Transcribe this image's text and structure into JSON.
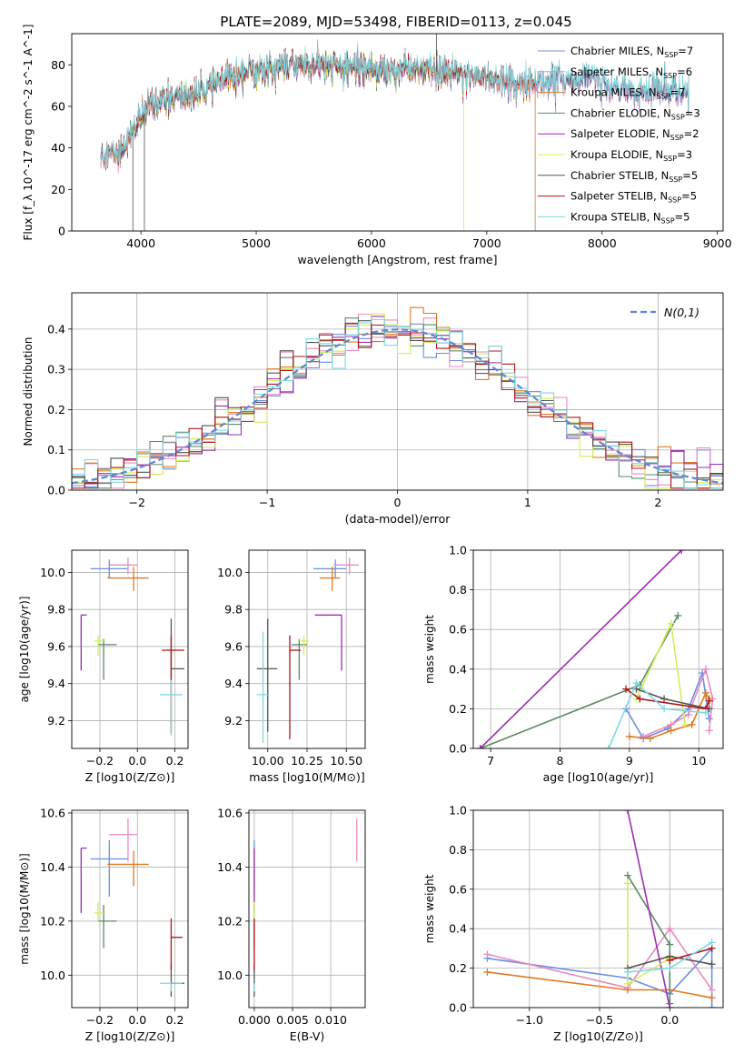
{
  "figure_title": "PLATE=2089, MJD=53498, FIBERID=0113, z=0.045",
  "colors": {
    "chabrier_miles": "#6b8fe0",
    "salpeter_miles": "#e98ac0",
    "kroupa_miles": "#e07a22",
    "chabrier_elodie": "#5b8a66",
    "salpeter_elodie": "#9b2fae",
    "kroupa_elodie": "#d2ef5a",
    "chabrier_stelib": "#555555",
    "salpeter_stelib": "#b01515",
    "kroupa_stelib": "#7fd8e0"
  },
  "chart_data": [
    {
      "id": "spectrum",
      "type": "line",
      "xlabel": "wavelength [Angstrom, rest frame]",
      "ylabel": "Flux [f_λ 10^-17 erg cm^-2 s^-1 A^-1]",
      "xlim": [
        3400,
        9050
      ],
      "ylim": [
        0,
        95
      ],
      "xticks": [
        4000,
        5000,
        6000,
        7000,
        8000,
        9000
      ],
      "yticks": [
        0,
        20,
        40,
        60,
        80
      ],
      "grid": false,
      "legend_placement": "top-right",
      "continuum": [
        [
          3650,
          38
        ],
        [
          3800,
          37
        ],
        [
          3950,
          50
        ],
        [
          4100,
          62
        ],
        [
          4300,
          64
        ],
        [
          4500,
          66
        ],
        [
          4700,
          72
        ],
        [
          4900,
          77
        ],
        [
          5100,
          78
        ],
        [
          5300,
          80
        ],
        [
          5500,
          80
        ],
        [
          5700,
          79
        ],
        [
          5900,
          79
        ],
        [
          6100,
          78
        ],
        [
          6300,
          78
        ],
        [
          6500,
          77
        ],
        [
          6700,
          76
        ],
        [
          6900,
          75
        ],
        [
          7100,
          73
        ],
        [
          7300,
          71
        ],
        [
          7500,
          72
        ],
        [
          7700,
          73
        ],
        [
          7900,
          74
        ],
        [
          8100,
          69
        ],
        [
          8300,
          67
        ],
        [
          8500,
          69
        ],
        [
          8700,
          67
        ]
      ],
      "series": [
        {
          "name": "Chabrier MILES, N_SSP=7",
          "color_key": "chabrier_miles",
          "x_start": 3650,
          "x_end": 8750
        },
        {
          "name": "Salpeter MILES, N_SSP=6",
          "color_key": "salpeter_miles",
          "x_start": 3650,
          "x_end": 8750
        },
        {
          "name": "Kroupa MILES, N_SSP=7",
          "color_key": "kroupa_miles",
          "x_start": 3650,
          "x_end": 7420
        },
        {
          "name": "Chabrier ELODIE, N_SSP=3",
          "color_key": "chabrier_elodie",
          "x_start": 3900,
          "x_end": 6800
        },
        {
          "name": "Salpeter ELODIE, N_SSP=2",
          "color_key": "salpeter_elodie",
          "x_start": 3900,
          "x_end": 6800
        },
        {
          "name": "Kroupa ELODIE, N_SSP=3",
          "color_key": "kroupa_elodie",
          "x_start": 3900,
          "x_end": 6800
        },
        {
          "name": "Chabrier STELIB, N_SSP=5",
          "color_key": "chabrier_stelib",
          "x_start": 3650,
          "x_end": 8750
        },
        {
          "name": "Salpeter STELIB, N_SSP=5",
          "color_key": "salpeter_stelib",
          "x_start": 3650,
          "x_end": 7420
        },
        {
          "name": "Kroupa STELIB, N_SSP=5",
          "color_key": "kroupa_stelib",
          "x_start": 3650,
          "x_end": 8750
        }
      ],
      "features": [
        {
          "x": 3930,
          "y": 0
        },
        {
          "x": 4030,
          "y": 0
        },
        {
          "x": 6563,
          "y": 95
        },
        {
          "x": 6800,
          "y": 0
        },
        {
          "x": 7420,
          "y": 0
        }
      ]
    },
    {
      "id": "residuals",
      "type": "histogram",
      "xlabel": "(data-model)/error",
      "ylabel": "Normed distribution",
      "xlim": [
        -2.5,
        2.5
      ],
      "ylim": [
        0,
        0.49
      ],
      "xticks": [
        -2,
        -1,
        0,
        1,
        2
      ],
      "yticks": [
        0.0,
        0.1,
        0.2,
        0.3,
        0.4
      ],
      "grid": true,
      "legend_placement": "top-right",
      "legend": "N(0,1)",
      "bin_width": 0.1
    },
    {
      "id": "age_vs_Z",
      "type": "errorbar",
      "xlabel": "Z [log10(Z/Z⊙)]",
      "ylabel": "age  [log10(age/yr)]",
      "xlim": [
        -0.35,
        0.27
      ],
      "ylim": [
        9.05,
        10.12
      ],
      "xticks": [
        -0.2,
        0.0,
        0.2
      ],
      "yticks": [
        9.2,
        9.4,
        9.6,
        9.8,
        10.0
      ],
      "grid": true,
      "points": [
        {
          "c": "chabrier_miles",
          "x": -0.15,
          "y": 10.02,
          "xlo": 0.1,
          "xhi": 0.1,
          "ylo": 0.05,
          "yhi": 0.05
        },
        {
          "c": "salpeter_miles",
          "x": -0.05,
          "y": 10.04,
          "xlo": 0.1,
          "xhi": 0.05,
          "ylo": 0.05,
          "yhi": 0.04
        },
        {
          "c": "kroupa_miles",
          "x": -0.02,
          "y": 9.97,
          "xlo": 0.14,
          "xhi": 0.08,
          "ylo": 0.07,
          "yhi": 0.06
        },
        {
          "c": "chabrier_elodie",
          "x": -0.18,
          "y": 9.61,
          "xlo": 0.03,
          "xhi": 0.07,
          "ylo": 0.19,
          "yhi": 0.03
        },
        {
          "c": "salpeter_elodie",
          "x": -0.3,
          "y": 9.77,
          "xlo": 0.0,
          "xhi": 0.03,
          "ylo": 0.3,
          "yhi": 0.0
        },
        {
          "c": "kroupa_elodie",
          "x": -0.21,
          "y": 9.63,
          "xlo": 0.02,
          "xhi": 0.03,
          "ylo": 0.08,
          "yhi": 0.03
        },
        {
          "c": "chabrier_stelib",
          "x": 0.18,
          "y": 9.48,
          "xlo": 0.0,
          "xhi": 0.07,
          "ylo": 0.34,
          "yhi": 0.27
        },
        {
          "c": "salpeter_stelib",
          "x": 0.18,
          "y": 9.58,
          "xlo": 0.05,
          "xhi": 0.07,
          "ylo": 0.45,
          "yhi": 0.08
        },
        {
          "c": "kroupa_stelib",
          "x": 0.18,
          "y": 9.34,
          "xlo": 0.06,
          "xhi": 0.06,
          "ylo": 0.22,
          "yhi": 0.08
        }
      ]
    },
    {
      "id": "age_vs_mass",
      "type": "errorbar",
      "xlabel": "mass [log10(M/M⊙)]",
      "ylabel": "",
      "xlim": [
        9.88,
        10.62
      ],
      "ylim": [
        9.05,
        10.12
      ],
      "xticks": [
        10.0,
        10.25,
        10.5
      ],
      "yticks": [
        9.2,
        9.4,
        9.6,
        9.8,
        10.0
      ],
      "grid": true,
      "points": [
        {
          "c": "chabrier_miles",
          "x": 10.43,
          "y": 10.02,
          "xlo": 0.14,
          "xhi": 0.07,
          "ylo": 0.05,
          "yhi": 0.05
        },
        {
          "c": "salpeter_miles",
          "x": 10.52,
          "y": 10.04,
          "xlo": 0.1,
          "xhi": 0.06,
          "ylo": 0.05,
          "yhi": 0.04
        },
        {
          "c": "kroupa_miles",
          "x": 10.41,
          "y": 9.97,
          "xlo": 0.08,
          "xhi": 0.05,
          "ylo": 0.07,
          "yhi": 0.06
        },
        {
          "c": "chabrier_elodie",
          "x": 10.2,
          "y": 9.61,
          "xlo": 0.05,
          "xhi": 0.05,
          "ylo": 0.19,
          "yhi": 0.03
        },
        {
          "c": "salpeter_elodie",
          "x": 10.47,
          "y": 9.77,
          "xlo": 0.17,
          "xhi": 0.0,
          "ylo": 0.3,
          "yhi": 0.0
        },
        {
          "c": "kroupa_elodie",
          "x": 10.23,
          "y": 9.63,
          "xlo": 0.03,
          "xhi": 0.03,
          "ylo": 0.08,
          "yhi": 0.03
        },
        {
          "c": "chabrier_stelib",
          "x": 10.0,
          "y": 9.48,
          "xlo": 0.07,
          "xhi": 0.06,
          "ylo": 0.34,
          "yhi": 0.27
        },
        {
          "c": "salpeter_stelib",
          "x": 10.14,
          "y": 9.58,
          "xlo": 0.0,
          "xhi": 0.07,
          "ylo": 0.48,
          "yhi": 0.08
        },
        {
          "c": "kroupa_stelib",
          "x": 9.97,
          "y": 9.34,
          "xlo": 0.04,
          "xhi": 0.03,
          "ylo": 0.26,
          "yhi": 0.34
        }
      ]
    },
    {
      "id": "massweight_vs_age",
      "type": "line",
      "xlabel": "age  [log10(age/yr)]",
      "ylabel": "mass weight",
      "xlim": [
        6.75,
        10.35
      ],
      "ylim": [
        0,
        1.0
      ],
      "xticks": [
        7,
        8,
        9,
        10
      ],
      "yticks": [
        0.0,
        0.2,
        0.4,
        0.6,
        0.8,
        1.0
      ],
      "grid": true,
      "series": [
        {
          "c": "chabrier_miles",
          "x": [
            8.95,
            9.2,
            9.55,
            9.85,
            10.05,
            10.15
          ],
          "y": [
            0.2,
            0.05,
            0.1,
            0.2,
            0.38,
            0.15
          ]
        },
        {
          "c": "salpeter_miles",
          "x": [
            9.2,
            9.6,
            9.85,
            10.1,
            10.2,
            10.15
          ],
          "y": [
            0.06,
            0.12,
            0.17,
            0.4,
            0.25,
            0.09
          ]
        },
        {
          "c": "kroupa_miles",
          "x": [
            9.0,
            9.3,
            9.6,
            9.9,
            10.1,
            10.15
          ],
          "y": [
            0.06,
            0.05,
            0.09,
            0.12,
            0.28,
            0.25
          ]
        },
        {
          "c": "chabrier_elodie",
          "x": [
            6.85,
            9.15,
            9.7
          ],
          "y": [
            0.0,
            0.32,
            0.67
          ]
        },
        {
          "c": "salpeter_elodie",
          "x": [
            6.85,
            9.75
          ],
          "y": [
            0.0,
            1.0
          ]
        },
        {
          "c": "kroupa_elodie",
          "x": [
            9.1,
            9.6,
            9.8
          ],
          "y": [
            0.25,
            0.63,
            0.12
          ]
        },
        {
          "c": "chabrier_stelib",
          "x": [
            9.1,
            9.5,
            10.15
          ],
          "y": [
            0.3,
            0.25,
            0.2
          ]
        },
        {
          "c": "salpeter_stelib",
          "x": [
            8.95,
            9.15,
            10.1,
            10.15
          ],
          "y": [
            0.3,
            0.25,
            0.2,
            0.24
          ]
        },
        {
          "c": "kroupa_stelib",
          "x": [
            8.7,
            9.1,
            9.5,
            10.1
          ],
          "y": [
            0.0,
            0.33,
            0.2,
            0.18
          ]
        }
      ]
    },
    {
      "id": "mass_vs_Z",
      "type": "errorbar",
      "xlabel": "Z [log10(Z/Z⊙)]",
      "ylabel": "mass [log10(M/M⊙)]",
      "xlim": [
        -0.35,
        0.27
      ],
      "ylim": [
        9.88,
        10.61
      ],
      "xticks": [
        -0.2,
        0.0,
        0.2
      ],
      "yticks": [
        10.0,
        10.2,
        10.4,
        10.6
      ],
      "grid": true,
      "points": [
        {
          "c": "chabrier_miles",
          "x": -0.15,
          "y": 10.43,
          "xlo": 0.1,
          "xhi": 0.1,
          "ylo": 0.14,
          "yhi": 0.07
        },
        {
          "c": "salpeter_miles",
          "x": -0.05,
          "y": 10.52,
          "xlo": 0.1,
          "xhi": 0.05,
          "ylo": 0.1,
          "yhi": 0.06
        },
        {
          "c": "kroupa_miles",
          "x": -0.02,
          "y": 10.41,
          "xlo": 0.14,
          "xhi": 0.08,
          "ylo": 0.08,
          "yhi": 0.05
        },
        {
          "c": "chabrier_elodie",
          "x": -0.18,
          "y": 10.2,
          "xlo": 0.03,
          "xhi": 0.07,
          "ylo": 0.1,
          "yhi": 0.06
        },
        {
          "c": "salpeter_elodie",
          "x": -0.3,
          "y": 10.47,
          "xlo": 0.0,
          "xhi": 0.03,
          "ylo": 0.24,
          "yhi": 0.0
        },
        {
          "c": "kroupa_elodie",
          "x": -0.21,
          "y": 10.23,
          "xlo": 0.02,
          "xhi": 0.03,
          "ylo": 0.03,
          "yhi": 0.04
        },
        {
          "c": "chabrier_stelib",
          "x": 0.18,
          "y": 9.97,
          "xlo": 0.0,
          "xhi": 0.07,
          "ylo": 0.05,
          "yhi": 0.07
        },
        {
          "c": "salpeter_stelib",
          "x": 0.18,
          "y": 10.14,
          "xlo": 0.0,
          "xhi": 0.06,
          "ylo": 0.12,
          "yhi": 0.07
        },
        {
          "c": "kroupa_stelib",
          "x": 0.18,
          "y": 9.97,
          "xlo": 0.06,
          "xhi": 0.06,
          "ylo": 0.03,
          "yhi": 0.0
        }
      ]
    },
    {
      "id": "mass_vs_ebv",
      "type": "errorbar",
      "xlabel": "E(B-V)",
      "ylabel": "",
      "xlim": [
        -0.0007,
        0.0145
      ],
      "ylim": [
        9.88,
        10.61
      ],
      "xticks": [
        0.0,
        0.005,
        0.01
      ],
      "xticklabels": [
        "0.000",
        "0.005",
        "0.010"
      ],
      "yticks": [
        10.0,
        10.2,
        10.4,
        10.6
      ],
      "grid": true,
      "points": [
        {
          "c": "chabrier_miles",
          "x": 0.0,
          "y": 10.43,
          "xlo": 0.0,
          "xhi": 0.0,
          "ylo": 0.14,
          "yhi": 0.07
        },
        {
          "c": "salpeter_miles",
          "x": 0.0134,
          "y": 10.52,
          "xlo": 0.0,
          "xhi": 0.0,
          "ylo": 0.1,
          "yhi": 0.06
        },
        {
          "c": "kroupa_miles",
          "x": 0.0,
          "y": 10.41,
          "xlo": 0.0,
          "xhi": 0.0,
          "ylo": 0.08,
          "yhi": 0.05
        },
        {
          "c": "chabrier_elodie",
          "x": 0.0,
          "y": 10.2,
          "xlo": 0.0,
          "xhi": 0.0,
          "ylo": 0.1,
          "yhi": 0.06
        },
        {
          "c": "salpeter_elodie",
          "x": 0.0,
          "y": 10.47,
          "xlo": 0.0,
          "xhi": 0.0,
          "ylo": 0.24,
          "yhi": 0.0
        },
        {
          "c": "kroupa_elodie",
          "x": 0.0,
          "y": 10.23,
          "xlo": 0.0,
          "xhi": 0.0,
          "ylo": 0.03,
          "yhi": 0.04
        },
        {
          "c": "chabrier_stelib",
          "x": 0.0,
          "y": 9.97,
          "xlo": 0.0,
          "xhi": 0.0,
          "ylo": 0.05,
          "yhi": 0.07
        },
        {
          "c": "salpeter_stelib",
          "x": 0.0,
          "y": 10.14,
          "xlo": 0.0,
          "xhi": 0.0,
          "ylo": 0.12,
          "yhi": 0.07
        },
        {
          "c": "kroupa_stelib",
          "x": 0.0,
          "y": 9.97,
          "xlo": 0.0,
          "xhi": 0.0,
          "ylo": 0.03,
          "yhi": 0.0
        }
      ]
    },
    {
      "id": "massweight_vs_Z",
      "type": "line",
      "xlabel": "Z [log10(Z/Z⊙)]",
      "ylabel": "mass weight",
      "xlim": [
        -1.4,
        0.38
      ],
      "ylim": [
        0,
        1.0
      ],
      "xticks": [
        -1.0,
        -0.5,
        0.0
      ],
      "yticks": [
        0.0,
        0.2,
        0.4,
        0.6,
        0.8,
        1.0
      ],
      "grid": true,
      "series": [
        {
          "c": "chabrier_miles",
          "x": [
            -1.3,
            -0.3,
            0.0,
            0.3,
            0.3
          ],
          "y": [
            0.25,
            0.15,
            0.07,
            0.3,
            0.0
          ]
        },
        {
          "c": "salpeter_miles",
          "x": [
            -1.3,
            -0.3,
            0.0,
            0.3
          ],
          "y": [
            0.27,
            0.1,
            0.4,
            0.09
          ]
        },
        {
          "c": "kroupa_miles",
          "x": [
            -1.3,
            -0.3,
            0.0,
            0.3
          ],
          "y": [
            0.18,
            0.09,
            0.09,
            0.05
          ]
        },
        {
          "c": "chabrier_elodie",
          "x": [
            -0.3,
            0.0,
            0.0
          ],
          "y": [
            0.67,
            0.32,
            0.02
          ]
        },
        {
          "c": "salpeter_elodie",
          "x": [
            -0.3,
            0.0
          ],
          "y": [
            1.0,
            0.0
          ]
        },
        {
          "c": "kroupa_elodie",
          "x": [
            -0.3,
            -0.3,
            0.0
          ],
          "y": [
            0.63,
            0.12,
            0.25
          ]
        },
        {
          "c": "chabrier_stelib",
          "x": [
            -0.3,
            0.0,
            0.3
          ],
          "y": [
            0.2,
            0.26,
            0.22
          ]
        },
        {
          "c": "salpeter_stelib",
          "x": [
            0.0,
            0.3
          ],
          "y": [
            0.24,
            0.3
          ]
        },
        {
          "c": "kroupa_stelib",
          "x": [
            -0.3,
            0.0,
            0.3
          ],
          "y": [
            0.18,
            0.2,
            0.33
          ]
        }
      ]
    }
  ]
}
